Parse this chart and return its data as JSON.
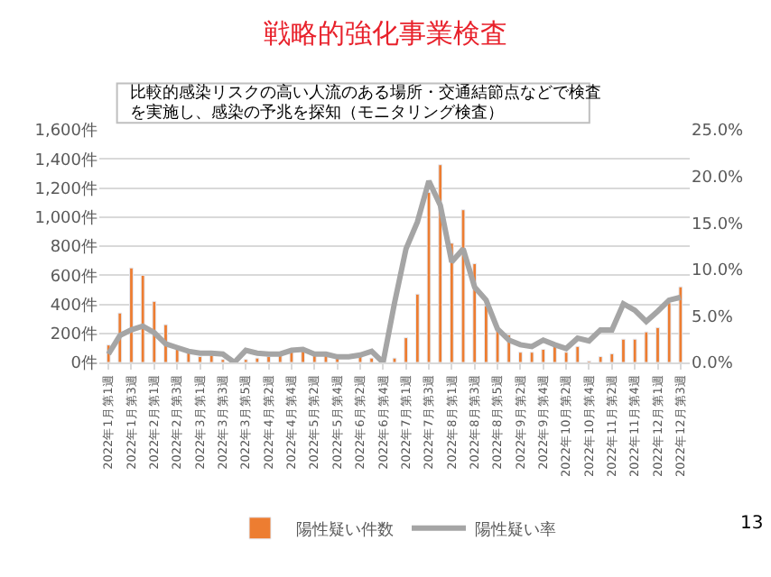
{
  "chart_data": {
    "type": "bar",
    "title": "戦略的強化事業検査",
    "annotations": [
      "比較的感染リスクの高い人流のある場所・交通結節点などで検査",
      "を実施し、感染の予兆を探知（モニタリング検査）",
      "13"
    ],
    "categories": [
      "2022年1月第1週",
      null,
      "2022年1月第3週",
      null,
      "2022年2月第1週",
      null,
      "2022年2月第3週",
      null,
      "2022年3月第1週",
      null,
      "2022年3月第3週",
      null,
      "2022年3月第5週",
      null,
      "2022年4月第2週",
      null,
      "2022年4月第4週",
      null,
      "2022年5月第2週",
      null,
      "2022年5月第4週",
      null,
      "2022年6月第2週",
      null,
      "2022年6月第4週",
      null,
      "2022年7月第1週",
      null,
      "2022年7月第3週",
      null,
      "2022年8月第1週",
      null,
      "2022年8月第3週",
      null,
      "2022年8月第5週",
      null,
      "2022年9月第2週",
      null,
      "2022年9月第4週",
      null,
      "2022年10月第2週",
      null,
      "2022年10月第4週",
      null,
      "2022年11月第2週",
      null,
      "2022年11月第4週",
      null,
      "2022年12月第1週",
      null,
      "2022年12月第3週"
    ],
    "series": [
      {
        "name": "陽性疑い件数",
        "color": "#ed7d31",
        "values": [
          120,
          340,
          650,
          600,
          420,
          260,
          100,
          80,
          40,
          50,
          20,
          null,
          20,
          30,
          40,
          50,
          90,
          90,
          60,
          60,
          30,
          null,
          50,
          30,
          null,
          30,
          170,
          470,
          1170,
          1360,
          820,
          1050,
          680,
          390,
          230,
          190,
          70,
          70,
          90,
          110,
          70,
          110,
          10,
          40,
          60,
          160,
          160,
          210,
          240,
          410,
          520
        ]
      },
      {
        "name": "陽性疑い率",
        "type": "line",
        "axis": "y2",
        "color": "#a5a5a5",
        "values": [
          0.9,
          2.9,
          3.5,
          3.9,
          3.2,
          2.0,
          1.6,
          1.2,
          1.0,
          1.0,
          0.9,
          0,
          1.3,
          1.0,
          0.9,
          0.9,
          1.3,
          1.4,
          0.9,
          0.9,
          0.6,
          0.6,
          0.8,
          1.2,
          0,
          6.4,
          12.2,
          15.1,
          19.5,
          16.9,
          10.8,
          12.2,
          8.1,
          6.7,
          3.6,
          2.4,
          1.9,
          1.7,
          2.4,
          1.9,
          1.5,
          2.6,
          2.3,
          3.5,
          3.5,
          6.3,
          5.6,
          4.4,
          5.5,
          6.7,
          7.0
        ]
      }
    ],
    "ylim": [
      0,
      1600
    ],
    "yticks": [
      {
        "value": 0,
        "label": "0件"
      },
      {
        "value": 200,
        "label": "200件"
      },
      {
        "value": 400,
        "label": "400件"
      },
      {
        "value": 600,
        "label": "600件"
      },
      {
        "value": 800,
        "label": "800件"
      },
      {
        "value": 1000,
        "label": "1,000件"
      },
      {
        "value": 1200,
        "label": "1,200件"
      },
      {
        "value": 1400,
        "label": "1,400件"
      },
      {
        "value": 1600,
        "label": "1,600件"
      }
    ],
    "y2lim": [
      0,
      25
    ],
    "y2ticks": [
      {
        "value": 0,
        "label": "0.0%"
      },
      {
        "value": 5,
        "label": "5.0%"
      },
      {
        "value": 10,
        "label": "10.0%"
      },
      {
        "value": 15,
        "label": "15.0%"
      },
      {
        "value": 20,
        "label": "20.0%"
      },
      {
        "value": 25,
        "label": "25.0%"
      }
    ],
    "grid": "y",
    "legend": "bottom",
    "marker": "none",
    "line_style": "solid"
  }
}
